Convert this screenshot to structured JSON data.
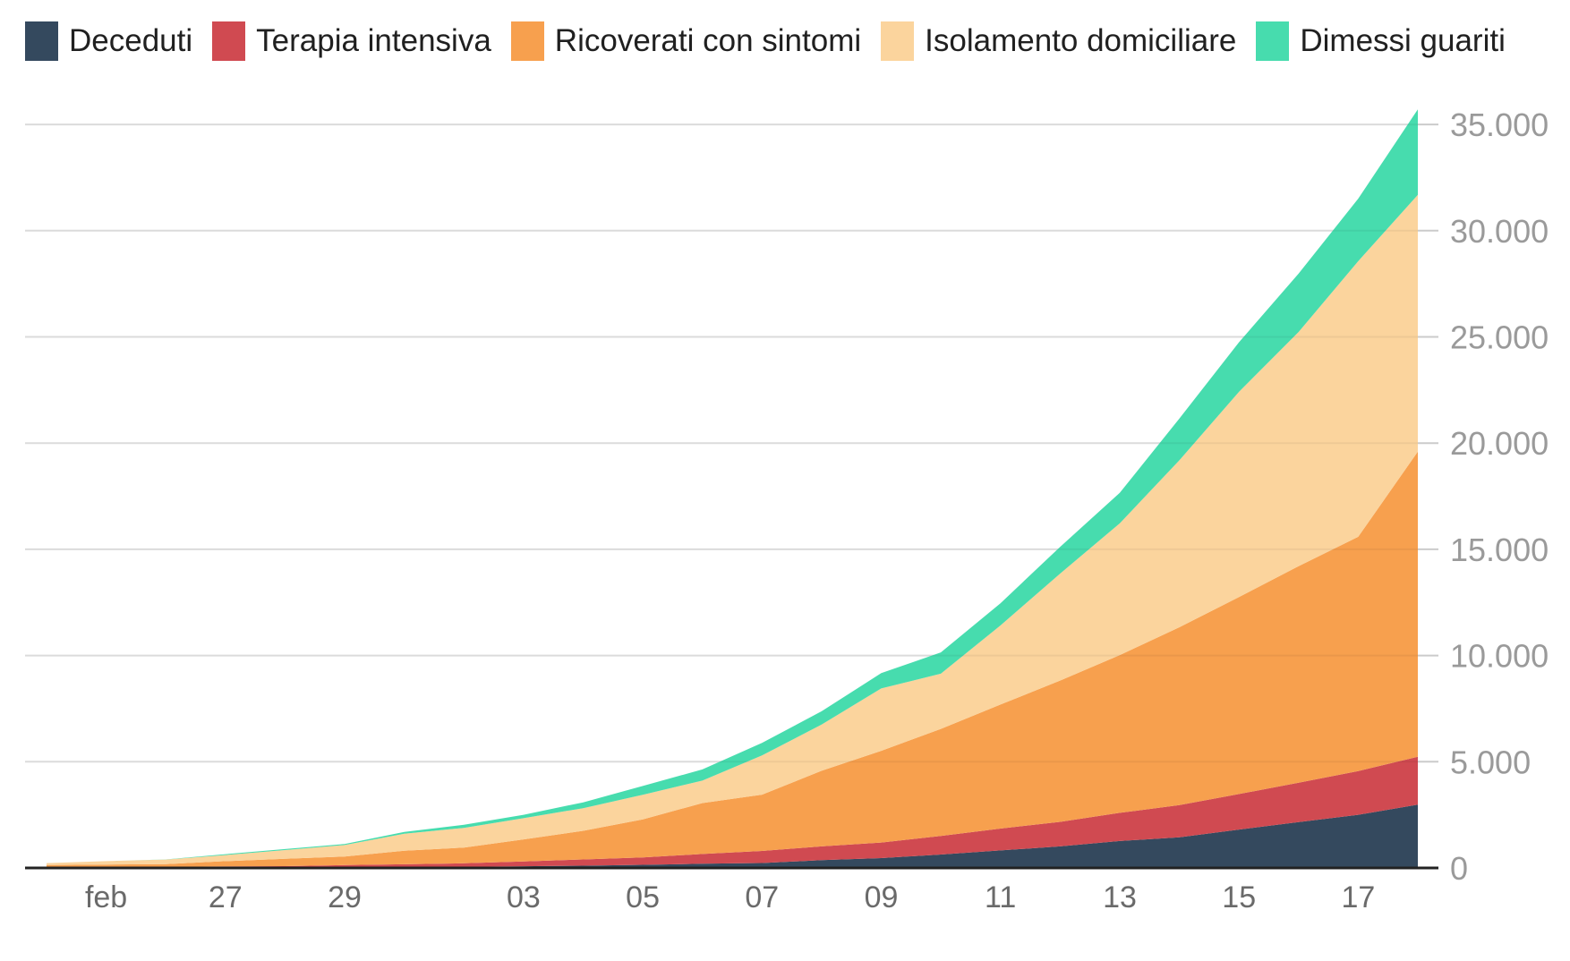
{
  "chart_data": {
    "type": "area",
    "stacked": true,
    "grid": "horizontal",
    "legend_position": "top",
    "y_labels_position": "right",
    "ylim": [
      0,
      36800
    ],
    "x_dates": [
      "2020-02-24",
      "2020-02-25",
      "2020-02-26",
      "2020-02-27",
      "2020-02-28",
      "2020-02-29",
      "2020-03-01",
      "2020-03-02",
      "2020-03-03",
      "2020-03-04",
      "2020-03-05",
      "2020-03-06",
      "2020-03-07",
      "2020-03-08",
      "2020-03-09",
      "2020-03-10",
      "2020-03-11",
      "2020-03-12",
      "2020-03-13",
      "2020-03-14",
      "2020-03-15",
      "2020-03-16",
      "2020-03-17",
      "2020-03-18"
    ],
    "x_axis": {
      "tick_labels": [
        {
          "text": "feb",
          "point_index": 1
        },
        {
          "text": "27",
          "point_index": 3
        },
        {
          "text": "29",
          "point_index": 5
        },
        {
          "text": "03",
          "point_index": 8
        },
        {
          "text": "05",
          "point_index": 10
        },
        {
          "text": "07",
          "point_index": 12
        },
        {
          "text": "09",
          "point_index": 14
        },
        {
          "text": "11",
          "point_index": 16
        },
        {
          "text": "13",
          "point_index": 18
        },
        {
          "text": "15",
          "point_index": 20
        },
        {
          "text": "17",
          "point_index": 22
        }
      ]
    },
    "y_axis": {
      "ticks": [
        {
          "value": 0,
          "label": "0"
        },
        {
          "value": 5000,
          "label": "5.000"
        },
        {
          "value": 10000,
          "label": "10.000"
        },
        {
          "value": 15000,
          "label": "15.000"
        },
        {
          "value": 20000,
          "label": "20.000"
        },
        {
          "value": 25000,
          "label": "25.000"
        },
        {
          "value": 30000,
          "label": "30.000"
        },
        {
          "value": 35000,
          "label": "35.000"
        }
      ]
    },
    "series": [
      {
        "id": "deceduti",
        "name": "Deceduti",
        "color": "#34495e",
        "values": [
          7,
          10,
          12,
          17,
          21,
          29,
          34,
          52,
          79,
          107,
          148,
          197,
          233,
          366,
          463,
          631,
          827,
          1016,
          1266,
          1441,
          1809,
          2158,
          2503,
          2978
        ]
      },
      {
        "id": "terapia-intensiva",
        "name": "Terapia intensiva",
        "color": "#d04a51",
        "values": [
          26,
          35,
          36,
          56,
          64,
          105,
          140,
          166,
          229,
          295,
          351,
          462,
          567,
          650,
          733,
          877,
          1028,
          1153,
          1328,
          1518,
          1672,
          1851,
          2060,
          2257
        ]
      },
      {
        "id": "ricoverati-con-sintomi",
        "name": "Ricoverati con sintomi",
        "color": "#f7a04e",
        "values": [
          101,
          114,
          128,
          248,
          345,
          401,
          639,
          742,
          1034,
          1346,
          1790,
          2394,
          2651,
          3557,
          4316,
          5038,
          5838,
          6650,
          7426,
          8372,
          9268,
          10197,
          11025,
          14363
        ]
      },
      {
        "id": "isolamento-domiciliare",
        "name": "Isolamento domiciliare",
        "color": "#fbd49d",
        "values": [
          94,
          162,
          221,
          284,
          412,
          543,
          798,
          927,
          1000,
          1065,
          1155,
          1060,
          1843,
          2180,
          2936,
          2599,
          3724,
          5036,
          6201,
          7860,
          9663,
          11025,
          12977,
          12090
        ]
      },
      {
        "id": "dimessi-guariti",
        "name": "Dimessi guariti",
        "color": "#47dcae",
        "values": [
          1,
          1,
          3,
          45,
          46,
          50,
          83,
          149,
          160,
          276,
          414,
          523,
          589,
          622,
          724,
          1004,
          1045,
          1258,
          1439,
          1966,
          2335,
          2749,
          2941,
          4025
        ]
      }
    ]
  },
  "colors": {
    "axis_line": "#222222",
    "gridline": "#e7e7e7",
    "tick": "#cbcbcb",
    "y_label_text": "#9a9a9a",
    "x_label_text": "#6a6a6a",
    "legend_text": "#202020"
  }
}
